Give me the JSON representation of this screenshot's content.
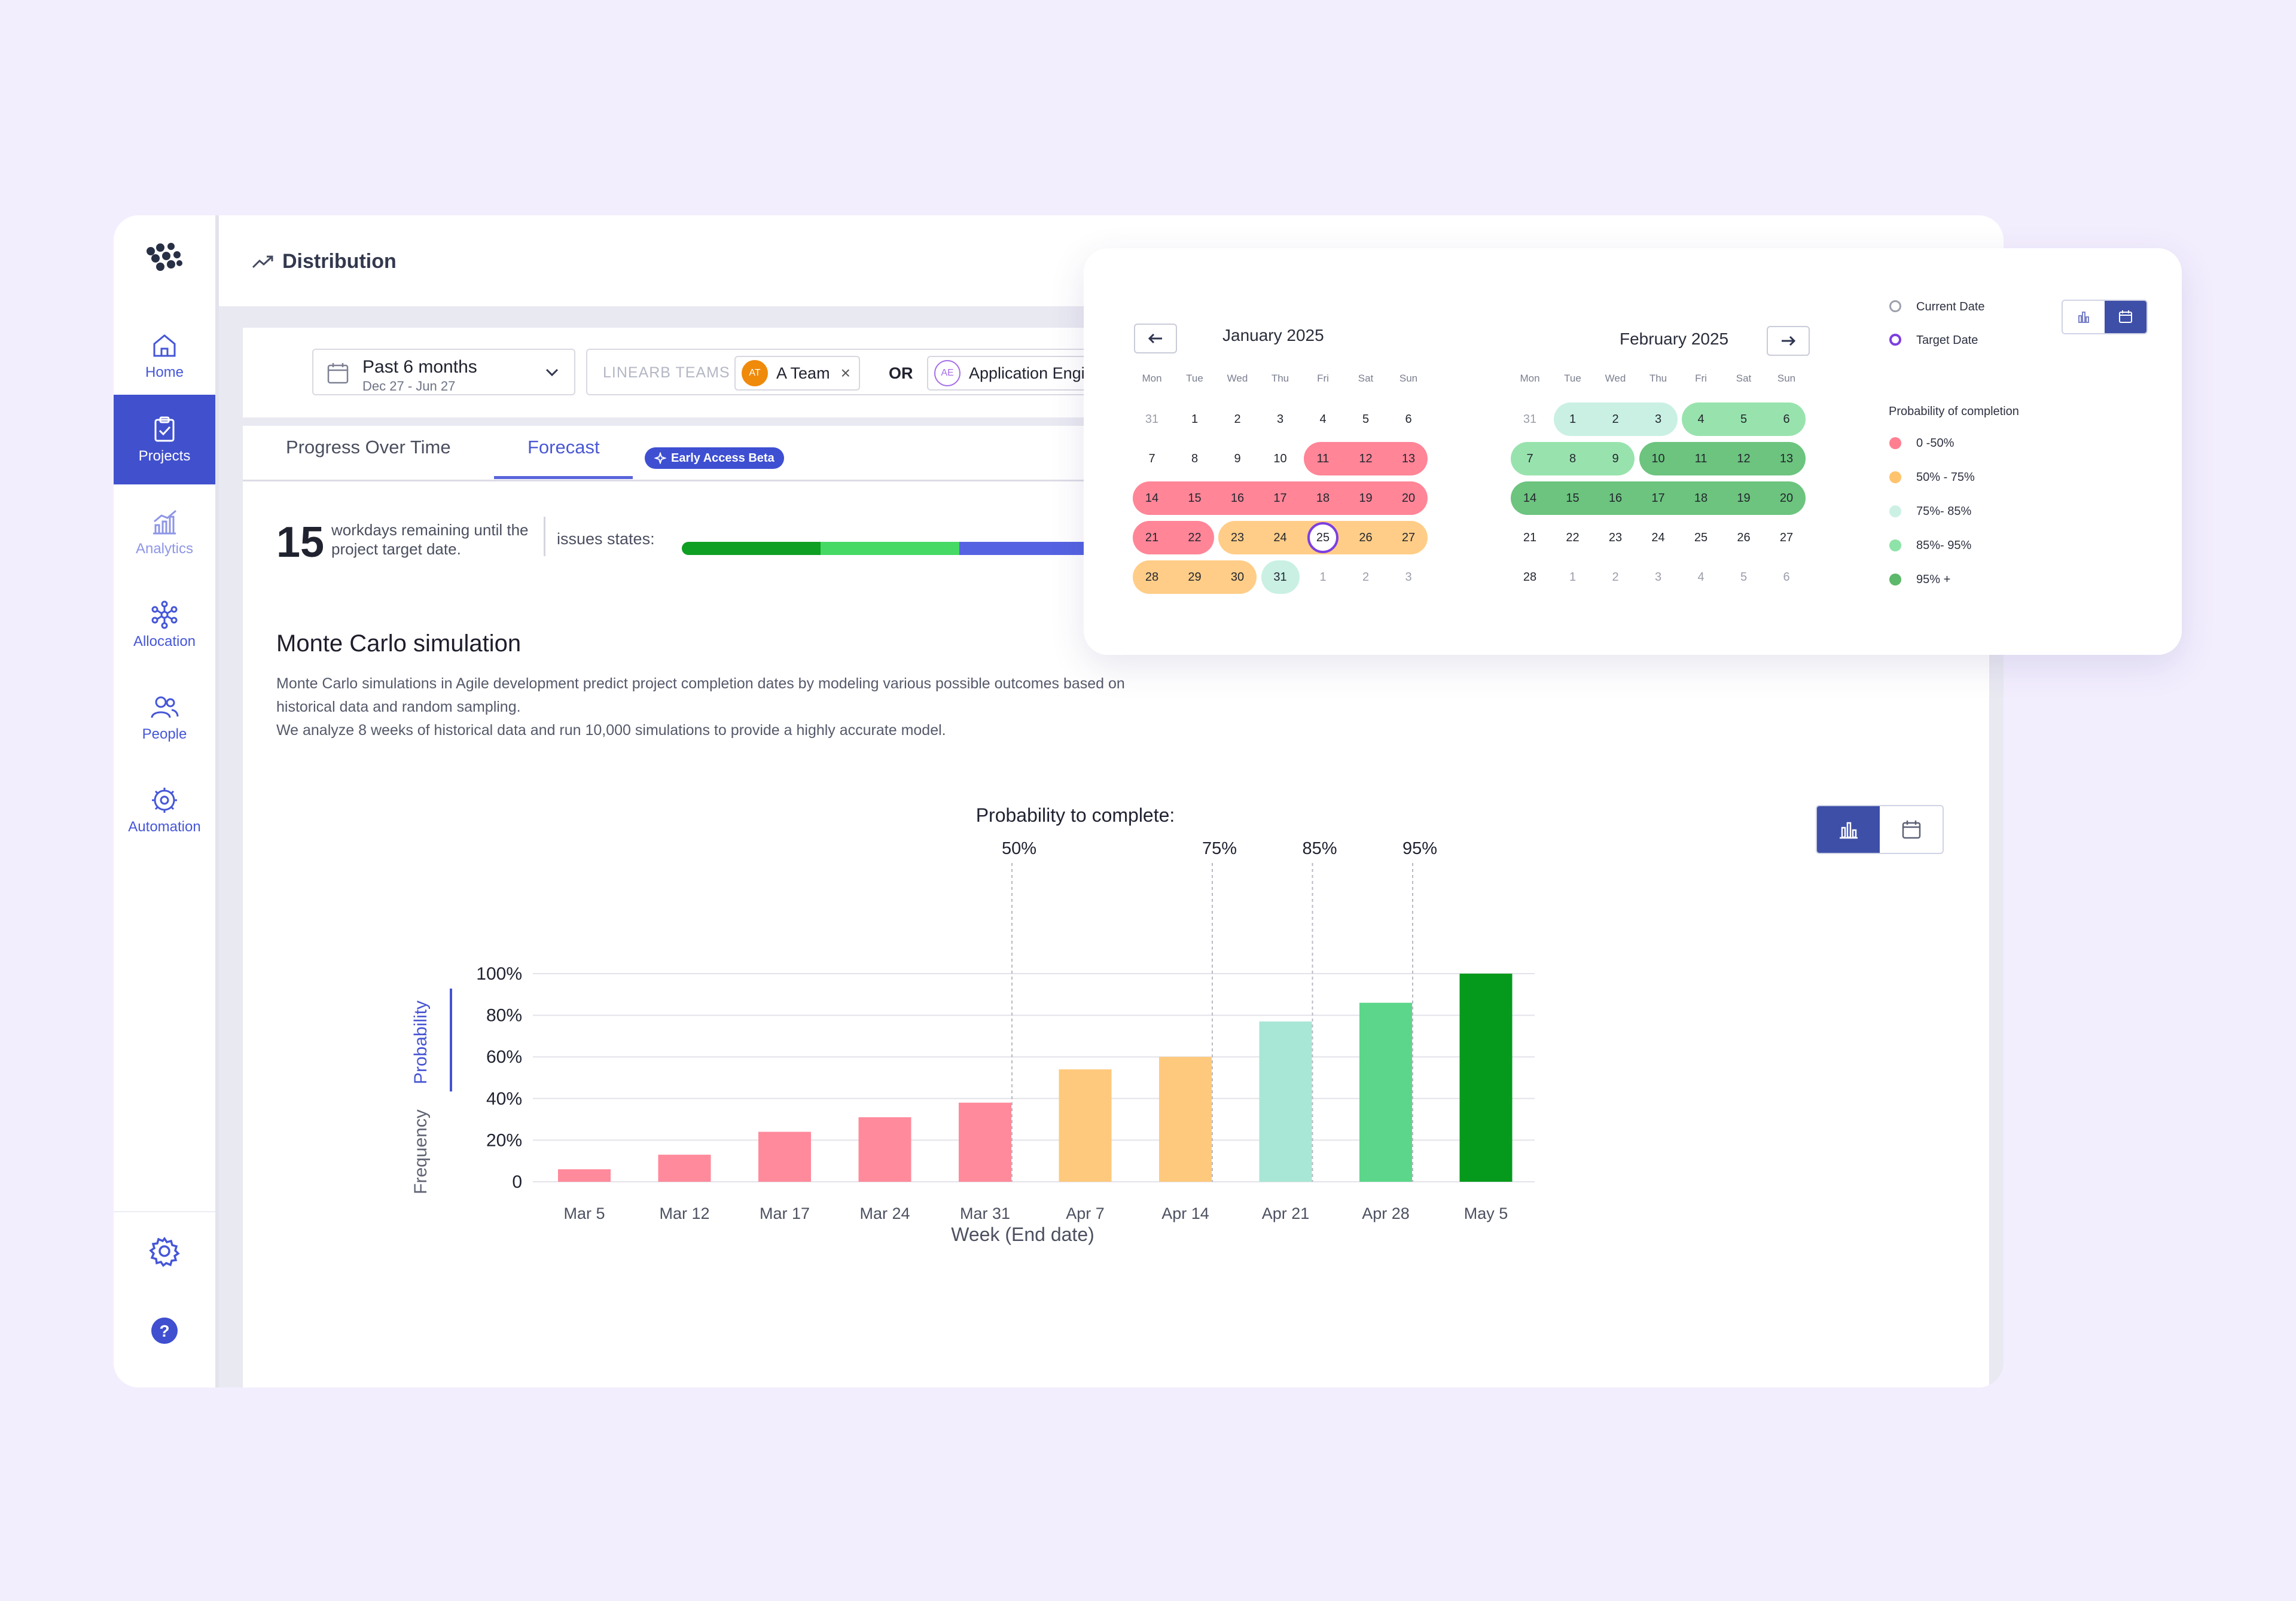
{
  "sidebar": {
    "items": [
      {
        "label": "Home",
        "icon": "home-icon"
      },
      {
        "label": "Projects",
        "icon": "clipboard-check-icon"
      },
      {
        "label": "Analytics",
        "icon": "analytics-chart-icon"
      },
      {
        "label": "Allocation",
        "icon": "allocation-network-icon"
      },
      {
        "label": "People",
        "icon": "people-icon"
      },
      {
        "label": "Automation",
        "icon": "automation-gear-icon"
      }
    ]
  },
  "header": {
    "title": "Distribution"
  },
  "filters": {
    "date_range": {
      "label": "Past 6 months",
      "sub": "Dec 27 - Jun 27"
    },
    "teams_label": "LINEARB TEAMS",
    "chips": [
      {
        "initials": "AT",
        "label": "A Team"
      },
      {
        "initials": "AE",
        "label": "Application Engineering"
      }
    ],
    "or_label": "OR"
  },
  "tabs": [
    {
      "label": "Progress Over Time"
    },
    {
      "label": "Forecast"
    }
  ],
  "beta_badge": "Early Access Beta",
  "summary": {
    "workdays": "15",
    "workdays_text": "workdays remaining until the project target date.",
    "issues_label": "issues states:",
    "issues_segments": [
      {
        "color": "#0f9f22",
        "share": 0.27
      },
      {
        "color": "#46d964",
        "share": 0.27
      },
      {
        "color": "#5563e2",
        "share": 0.46
      }
    ]
  },
  "monte_carlo": {
    "title": "Monte Carlo simulation",
    "desc_1": "Monte Carlo simulations in Agile development predict project completion dates by modeling various possible outcomes based on historical data and random sampling.",
    "desc_2": "We analyze 8 weeks of historical data and run 10,000 simulations to provide a highly accurate model."
  },
  "chart_data": {
    "type": "bar",
    "title": "Probability to complete:",
    "xlabel": "Week (End date)",
    "ylabel": "Probability",
    "ylabel_alt": "Frequency",
    "categories": [
      "Mar 5",
      "Mar 12",
      "Mar 17",
      "Mar 24",
      "Mar 31",
      "Apr 7",
      "Apr 14",
      "Apr 21",
      "Apr 28",
      "May 5"
    ],
    "values": [
      6,
      13,
      24,
      31,
      38,
      54,
      60,
      77,
      86,
      100
    ],
    "colors": [
      "#ff8a9b",
      "#ff8a9b",
      "#ff8a9b",
      "#ff8a9b",
      "#ff8a9b",
      "#ffc97d",
      "#ffc97d",
      "#a8e7d5",
      "#5cd68b",
      "#069a1c"
    ],
    "yticks": [
      "0",
      "20%",
      "40%",
      "60%",
      "80%",
      "100%"
    ],
    "ylim": [
      0,
      100
    ],
    "grid": true,
    "thresholds": [
      {
        "label": "50%",
        "after_index": 4
      },
      {
        "label": "75%",
        "after_index": 6
      },
      {
        "label": "85%",
        "after_index": 7
      },
      {
        "label": "95%",
        "after_index": 8
      }
    ]
  },
  "calendar": {
    "weekdays": [
      "Mon",
      "Tue",
      "Wed",
      "Thu",
      "Fri",
      "Sat",
      "Sun"
    ],
    "months": [
      {
        "title": "January 2025",
        "days": [
          [
            "31",
            "1",
            "2",
            "3",
            "4",
            "5",
            "6"
          ],
          [
            "7",
            "8",
            "9",
            "10",
            "11",
            "12",
            "13"
          ],
          [
            "14",
            "15",
            "16",
            "17",
            "18",
            "19",
            "20"
          ],
          [
            "21",
            "22",
            "23",
            "24",
            "25",
            "26",
            "27"
          ],
          [
            "28",
            "29",
            "30",
            "31",
            "1",
            "2",
            "3"
          ]
        ],
        "muted": [
          [
            0,
            0
          ],
          [
            4,
            4
          ],
          [
            4,
            5
          ],
          [
            4,
            6
          ]
        ],
        "target": [
          3,
          4
        ],
        "bands": [
          {
            "row": 1,
            "from": 4,
            "to": 6,
            "color": "#ff8597"
          },
          {
            "row": 2,
            "from": 0,
            "to": 6,
            "color": "#ff8597"
          },
          {
            "row": 3,
            "from": 0,
            "to": 1,
            "color": "#ff8597"
          },
          {
            "row": 3,
            "from": 2,
            "to": 6,
            "color": "#ffcd87"
          },
          {
            "row": 4,
            "from": 0,
            "to": 2,
            "color": "#ffcd87"
          },
          {
            "row": 4,
            "from": 3,
            "to": 3,
            "color": "#c9f0e3"
          }
        ]
      },
      {
        "title": "February 2025",
        "days": [
          [
            "31",
            "1",
            "2",
            "3",
            "4",
            "5",
            "6"
          ],
          [
            "7",
            "8",
            "9",
            "10",
            "11",
            "12",
            "13"
          ],
          [
            "14",
            "15",
            "16",
            "17",
            "18",
            "19",
            "20"
          ],
          [
            "21",
            "22",
            "23",
            "24",
            "25",
            "26",
            "27"
          ],
          [
            "28",
            "1",
            "2",
            "3",
            "4",
            "5",
            "6"
          ]
        ],
        "muted": [
          [
            0,
            0
          ],
          [
            4,
            1
          ],
          [
            4,
            2
          ],
          [
            4,
            3
          ],
          [
            4,
            4
          ],
          [
            4,
            5
          ],
          [
            4,
            6
          ]
        ],
        "bands": [
          {
            "row": 0,
            "from": 1,
            "to": 3,
            "color": "#c9f0e3"
          },
          {
            "row": 0,
            "from": 4,
            "to": 6,
            "color": "#98e3ad"
          },
          {
            "row": 1,
            "from": 0,
            "to": 2,
            "color": "#98e3ad"
          },
          {
            "row": 1,
            "from": 3,
            "to": 6,
            "color": "#6cc47e"
          },
          {
            "row": 2,
            "from": 0,
            "to": 6,
            "color": "#6cc47e"
          }
        ]
      }
    ],
    "legend": {
      "current_date": "Current Date",
      "target_date": "Target Date",
      "probability_title": "Probability of completion",
      "items": [
        {
          "label": "0 -50%",
          "color": "#ff7f91"
        },
        {
          "label": "50% - 75%",
          "color": "#ffc36e"
        },
        {
          "label": "75%- 85%",
          "color": "#ccf1e4"
        },
        {
          "label": "85%- 95%",
          "color": "#8ee3a8"
        },
        {
          "label": "95% +",
          "color": "#5cb86a"
        }
      ]
    }
  }
}
